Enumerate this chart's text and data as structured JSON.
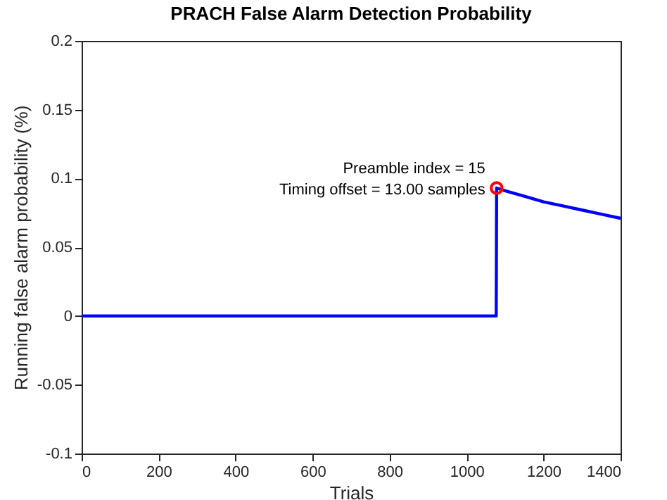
{
  "chart_data": {
    "type": "line",
    "title": "PRACH False Alarm Detection Probability",
    "xlabel": "Trials",
    "ylabel": "Running false alarm probability (%)",
    "series": [
      {
        "type": "line",
        "color": "#0000ff",
        "x": [
          0,
          1077,
          1078,
          1100,
          1150,
          1200,
          1250,
          1300,
          1350,
          1400
        ],
        "values": [
          0,
          0,
          0.093,
          0.091,
          0.087,
          0.083,
          0.08,
          0.077,
          0.074,
          0.071
        ]
      },
      {
        "type": "scatter",
        "color": "#ff0000",
        "marker": "circle",
        "x": [
          1078
        ],
        "values": [
          0.093
        ]
      }
    ],
    "annotations": [
      {
        "text": "Preamble index = 15",
        "x": 1078,
        "y": 0.093
      },
      {
        "text": "Timing offset = 13.00 samples",
        "x": 1078,
        "y": 0.093
      }
    ],
    "xlim": [
      0,
      1400
    ],
    "xticks": [
      0,
      200,
      400,
      600,
      800,
      1000,
      1200,
      1400
    ],
    "ylim": [
      -0.1,
      0.2
    ],
    "yticks": [
      -0.1,
      -0.05,
      0,
      0.05,
      0.1,
      0.15,
      0.2
    ],
    "grid": false,
    "marker": "none",
    "line_style": "solid"
  }
}
